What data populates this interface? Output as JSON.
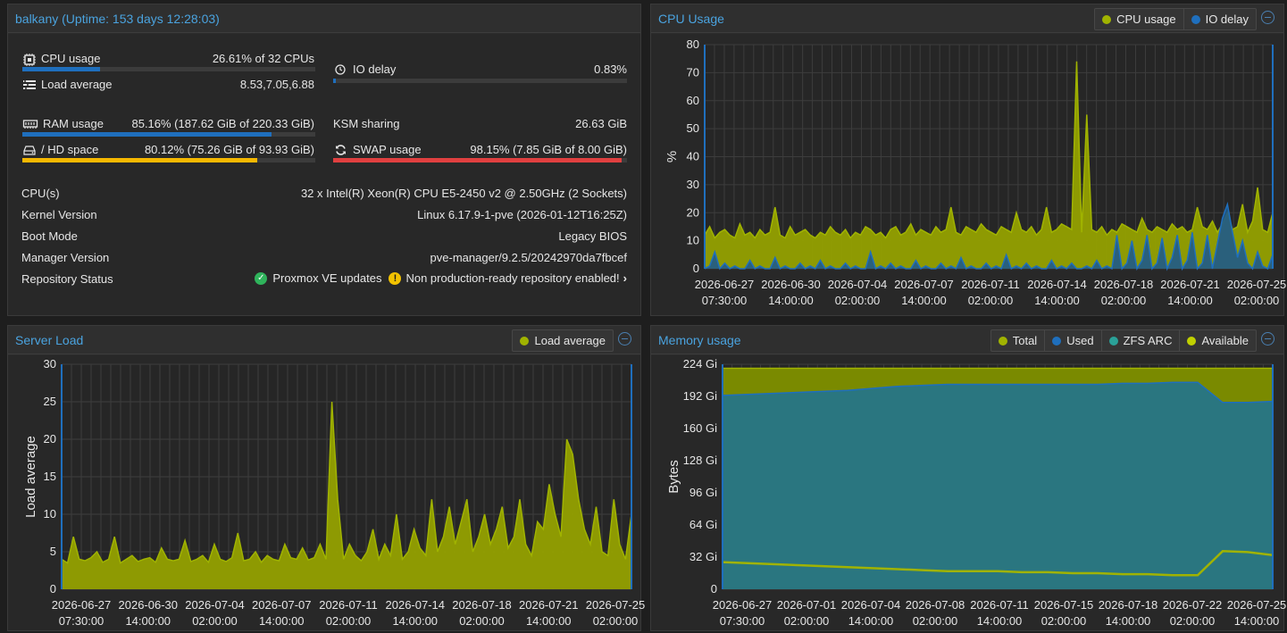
{
  "summary": {
    "title": "balkany (Uptime: 153 days 12:28:03)",
    "cpu": {
      "label": "CPU usage",
      "value": "26.61% of 32 CPUs",
      "fraction": 0.2661
    },
    "io": {
      "label": "IO delay",
      "value": "0.83%",
      "fraction": 0.0083
    },
    "load": {
      "label": "Load average",
      "value": "8.53,7.05,6.88"
    },
    "ram": {
      "label": "RAM usage",
      "value": "85.16% (187.62 GiB of 220.33 GiB)",
      "fraction": 0.8516
    },
    "ksm": {
      "label": "KSM sharing",
      "value": "26.63 GiB"
    },
    "hd": {
      "label": "/ HD space",
      "value": "80.12% (75.26 GiB of 93.93 GiB)",
      "fraction": 0.8012
    },
    "swap": {
      "label": "SWAP usage",
      "value": "98.15% (7.85 GiB of 8.00 GiB)",
      "fraction": 0.9815
    },
    "info": [
      {
        "label": "CPU(s)",
        "value": "32 x Intel(R) Xeon(R) CPU E5-2450 v2 @ 2.50GHz (2 Sockets)"
      },
      {
        "label": "Kernel Version",
        "value": "Linux 6.17.9-1-pve (2026-01-12T16:25Z)"
      },
      {
        "label": "Boot Mode",
        "value": "Legacy BIOS"
      },
      {
        "label": "Manager Version",
        "value": "pve-manager/9.2.5/20242970da7fbcef"
      }
    ],
    "repo": {
      "label": "Repository Status",
      "ok_text": "Proxmox VE updates",
      "warn_text": "Non production-ready repository enabled!"
    },
    "colors": {
      "blue": "#1f6fbd",
      "yellow": "#f5b800",
      "red": "#e04040"
    }
  },
  "cpu_panel": {
    "title": "CPU Usage",
    "legend": [
      {
        "label": "CPU usage",
        "color": "#a0b300"
      },
      {
        "label": "IO delay",
        "color": "#1f6fbd"
      }
    ]
  },
  "load_panel": {
    "title": "Server Load",
    "legend": [
      {
        "label": "Load average",
        "color": "#a0b300"
      }
    ]
  },
  "mem_panel": {
    "title": "Memory usage",
    "legend": [
      {
        "label": "Total",
        "color": "#a0b300"
      },
      {
        "label": "Used",
        "color": "#1f6fbd"
      },
      {
        "label": "ZFS ARC",
        "color": "#2aa198"
      },
      {
        "label": "Available",
        "color": "#c0d000"
      }
    ]
  },
  "chart_data": [
    {
      "type": "area",
      "title": "CPU Usage",
      "ylabel": "%",
      "ylim": [
        0,
        80
      ],
      "yticks": [
        "0",
        "10",
        "20",
        "30",
        "40",
        "50",
        "60",
        "70",
        "80"
      ],
      "xticks": [
        [
          "2026-06-27",
          "07:30:00"
        ],
        [
          "2026-06-30",
          "14:00:00"
        ],
        [
          "2026-07-04",
          "02:00:00"
        ],
        [
          "2026-07-07",
          "14:00:00"
        ],
        [
          "2026-07-11",
          "02:00:00"
        ],
        [
          "2026-07-14",
          "14:00:00"
        ],
        [
          "2026-07-18",
          "02:00:00"
        ],
        [
          "2026-07-21",
          "14:00:00"
        ],
        [
          "2026-07-25",
          "02:00:00"
        ]
      ],
      "series": [
        {
          "name": "CPU usage",
          "values": [
            12,
            15,
            11,
            13,
            14,
            12,
            11,
            16,
            12,
            13,
            11,
            14,
            12,
            13,
            22,
            12,
            11,
            15,
            12,
            13,
            14,
            12,
            11,
            13,
            12,
            15,
            13,
            12,
            14,
            11,
            13,
            12,
            15,
            14,
            12,
            13,
            11,
            14,
            15,
            12,
            13,
            16,
            12,
            14,
            13,
            12,
            15,
            13,
            14,
            22,
            13,
            12,
            15,
            14,
            13,
            16,
            14,
            13,
            12,
            15,
            14,
            13,
            20,
            14,
            13,
            15,
            12,
            14,
            22,
            13,
            14,
            16,
            15,
            14,
            74,
            13,
            55,
            14,
            13,
            15,
            12,
            14,
            13,
            16,
            15,
            14,
            13,
            18,
            14,
            13,
            15,
            14,
            13,
            16,
            14,
            15,
            13,
            14,
            22,
            15,
            14,
            17,
            13,
            16,
            20,
            14,
            15,
            23,
            13,
            17,
            29,
            14,
            13,
            20
          ]
        },
        {
          "name": "IO delay",
          "values": [
            0,
            1,
            6,
            0,
            2,
            0,
            1,
            0,
            0,
            3,
            0,
            1,
            0,
            0,
            4,
            0,
            1,
            0,
            0,
            2,
            0,
            1,
            0,
            3,
            0,
            1,
            0,
            0,
            2,
            0,
            1,
            0,
            0,
            6,
            0,
            1,
            0,
            2,
            0,
            1,
            0,
            0,
            3,
            0,
            1,
            0,
            0,
            2,
            0,
            1,
            0,
            4,
            0,
            1,
            0,
            0,
            2,
            0,
            1,
            0,
            5,
            0,
            1,
            0,
            2,
            0,
            1,
            0,
            0,
            3,
            0,
            1,
            0,
            2,
            0,
            0,
            1,
            0,
            3,
            0,
            1,
            0,
            12,
            0,
            2,
            10,
            0,
            3,
            12,
            0,
            2,
            11,
            0,
            4,
            12,
            0,
            3,
            13,
            0,
            2,
            12,
            0,
            9,
            18,
            23,
            13,
            4,
            10,
            2,
            0,
            6,
            1,
            0,
            5
          ]
        }
      ]
    },
    {
      "type": "area",
      "title": "Server Load",
      "ylabel": "Load average",
      "ylim": [
        0,
        30
      ],
      "yticks": [
        "0",
        "5",
        "10",
        "15",
        "20",
        "25",
        "30"
      ],
      "xticks": [
        [
          "2026-06-27",
          "07:30:00"
        ],
        [
          "2026-06-30",
          "14:00:00"
        ],
        [
          "2026-07-04",
          "02:00:00"
        ],
        [
          "2026-07-07",
          "14:00:00"
        ],
        [
          "2026-07-11",
          "02:00:00"
        ],
        [
          "2026-07-14",
          "14:00:00"
        ],
        [
          "2026-07-18",
          "02:00:00"
        ],
        [
          "2026-07-21",
          "14:00:00"
        ],
        [
          "2026-07-25",
          "02:00:00"
        ]
      ],
      "series": [
        {
          "name": "Load average",
          "values": [
            4,
            3.5,
            7,
            4,
            3.8,
            4.2,
            5,
            3.6,
            4,
            7,
            3.5,
            4,
            4.5,
            3.7,
            4,
            4.2,
            3.6,
            5.5,
            4,
            3.8,
            4,
            6.5,
            3.7,
            4,
            4.5,
            3.6,
            6,
            4,
            3.7,
            4.2,
            7.5,
            3.8,
            4,
            5,
            3.6,
            4.5,
            4,
            3.8,
            6,
            4.2,
            4,
            5.5,
            3.9,
            4.2,
            6,
            4,
            25,
            12,
            4,
            6,
            4.5,
            3.8,
            5,
            8,
            4,
            6,
            4.5,
            10,
            4,
            5,
            8,
            5.5,
            4.5,
            12,
            5,
            7,
            11,
            6,
            9,
            12,
            5,
            7,
            10,
            6,
            8,
            11,
            5.5,
            7,
            12,
            6,
            4.5,
            9,
            8,
            14,
            10,
            7,
            20,
            18,
            12,
            8,
            6,
            11,
            5,
            4.5,
            12,
            6,
            4,
            10
          ]
        }
      ]
    },
    {
      "type": "area",
      "title": "Memory usage",
      "ylabel": "Bytes",
      "ylim": [
        0,
        224
      ],
      "yticks": [
        "0",
        "32 Gi",
        "64 Gi",
        "96 Gi",
        "128 Gi",
        "160 Gi",
        "192 Gi",
        "224 Gi"
      ],
      "xticks": [
        [
          "2026-06-27",
          "07:30:00"
        ],
        [
          "2026-07-01",
          "02:00:00"
        ],
        [
          "2026-07-04",
          "14:00:00"
        ],
        [
          "2026-07-08",
          "02:00:00"
        ],
        [
          "2026-07-11",
          "14:00:00"
        ],
        [
          "2026-07-15",
          "02:00:00"
        ],
        [
          "2026-07-18",
          "14:00:00"
        ],
        [
          "2026-07-22",
          "02:00:00"
        ],
        [
          "2026-07-25",
          "14:00:00"
        ]
      ],
      "series": [
        {
          "name": "Total",
          "values": [
            220,
            220,
            220,
            220,
            220,
            220,
            220,
            220,
            220,
            220,
            220,
            220,
            220,
            220,
            220,
            220,
            220,
            220,
            220,
            220,
            220,
            220,
            220
          ]
        },
        {
          "name": "Used",
          "values": [
            193,
            194,
            195,
            196,
            197,
            198,
            200,
            202,
            203,
            204,
            204,
            204,
            204,
            204,
            204,
            204,
            205,
            205,
            206,
            206,
            186,
            186,
            187
          ]
        },
        {
          "name": "Available",
          "values": [
            27,
            26,
            25,
            24,
            23,
            22,
            21,
            20,
            19,
            18,
            18,
            18,
            17,
            17,
            16,
            16,
            15,
            15,
            14,
            14,
            38,
            37,
            34
          ]
        }
      ]
    }
  ]
}
